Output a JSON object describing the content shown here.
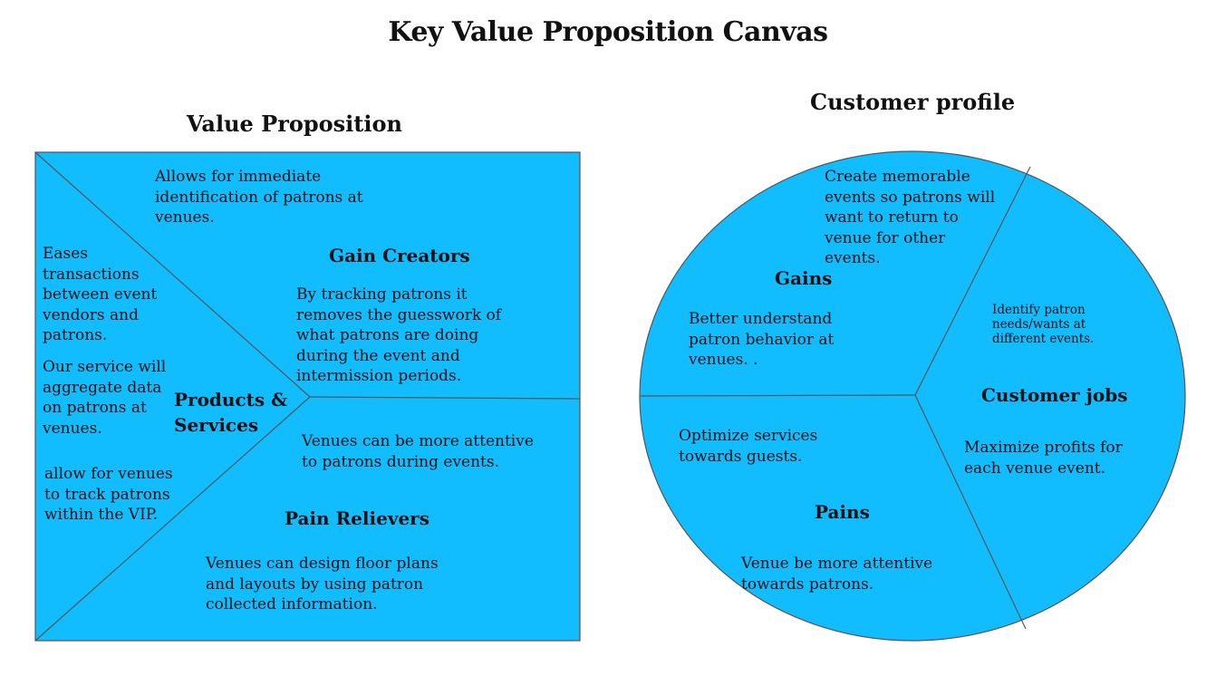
{
  "title": "Key Value Proposition Canvas",
  "value_proposition": {
    "title": "Value Proposition",
    "gain_creators": {
      "heading": "Gain Creators",
      "note_top": "Allows for immediate identification of patrons at venues.",
      "note_main": "By tracking patrons it removes the guesswork of what patrons are doing during the event and intermission periods."
    },
    "products_services": {
      "heading": "Products & Services",
      "note_1": "Eases transactions between event vendors and patrons.",
      "note_2": "Our service will aggregate data on patrons at venues.",
      "note_3": "allow for venues to track patrons within the VIP."
    },
    "pain_relievers": {
      "heading": "Pain Relievers",
      "note_top": "Venues can be more attentive to patrons during events.",
      "note_main": "Venues can design floor plans and layouts by using patron collected information."
    }
  },
  "customer_profile": {
    "title": "Customer profile",
    "gains": {
      "heading": "Gains",
      "note_top": "Create memorable events so patrons will want to return to venue for other events.",
      "note_main": "Better understand patron behavior at venues. ."
    },
    "customer_jobs": {
      "heading": "Customer jobs",
      "note_top": "Identify patron needs/wants at different events.",
      "note_main": "Maximize profits for each venue event."
    },
    "pains": {
      "heading": "Pains",
      "note_top": "Optimize services towards guests.",
      "note_main": "Venue be more attentive towards patrons."
    }
  },
  "colors": {
    "fill": "#12bdff",
    "stroke": "#555555",
    "text": "#111111"
  }
}
